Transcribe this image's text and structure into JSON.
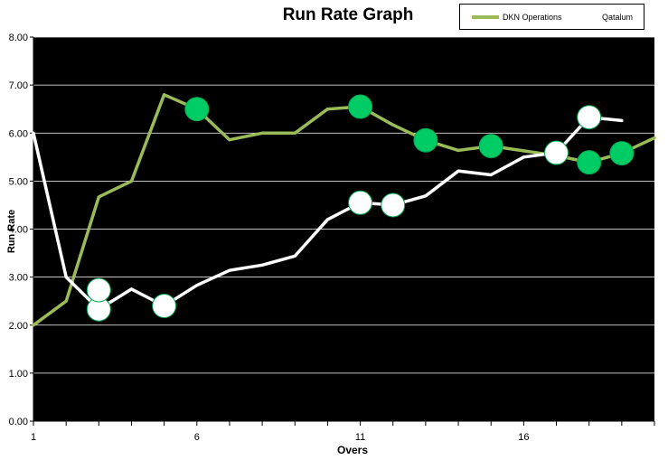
{
  "chart_data": {
    "type": "line",
    "title": "Run Rate  Graph",
    "xlabel": "Overs",
    "ylabel": "Run Rate",
    "ylim": [
      0,
      8
    ],
    "xlim": [
      1,
      20
    ],
    "yticks": [
      "0.00",
      "1.00",
      "2.00",
      "3.00",
      "4.00",
      "5.00",
      "6.00",
      "7.00",
      "8.00"
    ],
    "xticks": [
      "1",
      "6",
      "11",
      "16"
    ],
    "grid": "horizontal",
    "legend_position": "top-right",
    "background": "#000000",
    "series": [
      {
        "name": "DKN Operations",
        "color": "#9bbb59",
        "x": [
          1,
          2,
          3,
          4,
          5,
          6,
          7,
          8,
          9,
          10,
          11,
          12,
          13,
          14,
          15,
          16,
          17,
          18,
          19,
          20
        ],
        "values": [
          2.0,
          2.5,
          4.67,
          5.0,
          6.8,
          6.5,
          5.86,
          6.0,
          6.0,
          6.5,
          6.55,
          6.17,
          5.85,
          5.64,
          5.73,
          5.63,
          5.53,
          5.39,
          5.58,
          5.9
        ],
        "markers": [
          {
            "x": 6,
            "y": 6.5
          },
          {
            "x": 11,
            "y": 6.55
          },
          {
            "x": 13,
            "y": 5.85
          },
          {
            "x": 15,
            "y": 5.73
          },
          {
            "x": 18,
            "y": 5.39
          },
          {
            "x": 19,
            "y": 5.58
          }
        ],
        "marker_color": "#00cc66"
      },
      {
        "name": "Qatalum",
        "color": "#ffffff",
        "x": [
          1,
          2,
          3,
          4,
          5,
          6,
          7,
          8,
          9,
          10,
          11,
          12,
          13,
          14,
          15,
          16,
          17,
          18,
          19
        ],
        "values": [
          6.0,
          3.0,
          2.33,
          2.75,
          2.4,
          2.83,
          3.14,
          3.25,
          3.44,
          4.2,
          4.55,
          4.5,
          4.69,
          5.21,
          5.13,
          5.5,
          5.59,
          6.33,
          6.26
        ],
        "markers": [
          {
            "x": 3,
            "y": 2.33
          },
          {
            "x": 3,
            "y": 2.73
          },
          {
            "x": 5,
            "y": 2.4
          },
          {
            "x": 11,
            "y": 4.55
          },
          {
            "x": 12,
            "y": 4.5
          },
          {
            "x": 17,
            "y": 5.59
          },
          {
            "x": 18,
            "y": 6.33
          }
        ],
        "marker_color": "#ffffff"
      }
    ]
  }
}
